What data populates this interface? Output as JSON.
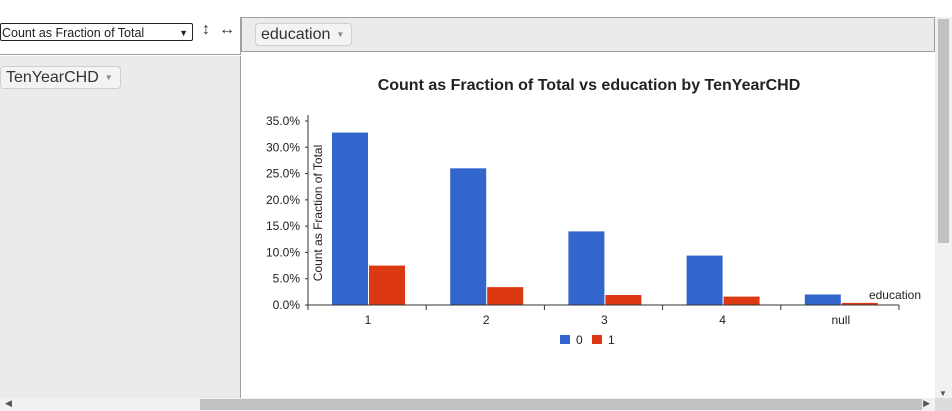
{
  "controls": {
    "aggregator_value": "Count as Fraction of Total",
    "select_arrow": "▼",
    "sort_rows_icon": "↕",
    "sort_cols_icon": "↔"
  },
  "column_field": {
    "label": "education",
    "caret": "▼"
  },
  "row_field": {
    "label": "TenYearCHD",
    "caret": "▼"
  },
  "chart_data": {
    "type": "bar",
    "title": "Count as Fraction of Total vs education by TenYearCHD",
    "xlabel": "education",
    "ylabel": "Count as Fraction of Total",
    "categories": [
      "1",
      "2",
      "3",
      "4",
      "null"
    ],
    "y_ticks": [
      "0.0%",
      "5.0%",
      "10.0%",
      "15.0%",
      "20.0%",
      "25.0%",
      "30.0%",
      "35.0%"
    ],
    "ylim": [
      0,
      35
    ],
    "series": [
      {
        "name": "0",
        "color": "#3366cc",
        "values": [
          32.8,
          26.0,
          14.0,
          9.4,
          2.0
        ]
      },
      {
        "name": "1",
        "color": "#dc3912",
        "values": [
          7.5,
          3.4,
          1.9,
          1.6,
          0.4
        ]
      }
    ],
    "legend_position": "bottom"
  }
}
